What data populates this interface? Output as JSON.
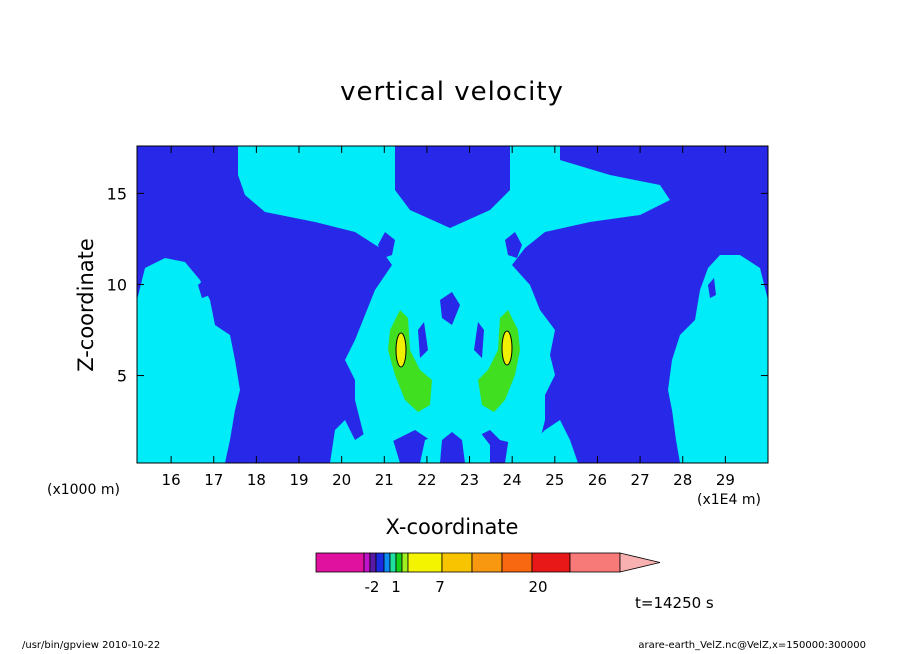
{
  "chart_data": {
    "type": "heatmap",
    "title": "vertical velocity",
    "xlabel": "X-coordinate",
    "ylabel": "Z-coordinate",
    "x_unit_left": "(x1000 m)",
    "x_unit_right": "(x1E4 m)",
    "x_ticks": [
      "16",
      "17",
      "18",
      "19",
      "20",
      "21",
      "22",
      "23",
      "24",
      "25",
      "26",
      "27",
      "28",
      "29"
    ],
    "y_ticks": [
      "5",
      "10",
      "15"
    ],
    "xlim": [
      15.2,
      30.0
    ],
    "ylim": [
      0.2,
      17.6
    ],
    "colorbar": {
      "colors": [
        "#e0119e",
        "#c012c8",
        "#5a1aa8",
        "#1a2ae0",
        "#0a8cf0",
        "#20e0a0",
        "#18d018",
        "#a0f020",
        "#f4f400",
        "#f8c400",
        "#f89810",
        "#f86810",
        "#e81818",
        "#f87a78",
        "#f8b0b0"
      ],
      "tick_labels": [
        "-2",
        "1",
        "7",
        "20"
      ]
    },
    "levels": {
      "dark_blue": "#2828e8",
      "cyan": "#00ecf8",
      "green": "#40e020",
      "yellow": "#f0f000"
    },
    "time_label": "t=14250 s",
    "footer_left": "/usr/bin/gpview   2010-10-22",
    "footer_right": "arare-earth_VelZ.nc@VelZ,x=150000:300000"
  }
}
